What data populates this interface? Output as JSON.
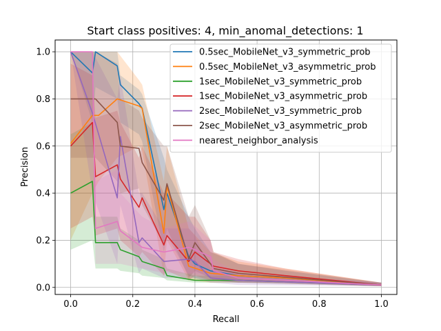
{
  "chart_data": {
    "type": "line",
    "title": "Start class positives: 4, min_anomal_detections: 1",
    "xlabel": "Recall",
    "ylabel": "Precision",
    "xlim": [
      -0.05,
      1.05
    ],
    "ylim": [
      -0.03,
      1.05
    ],
    "xticks": [
      "0.0",
      "0.2",
      "0.4",
      "0.6",
      "0.8",
      "1.0"
    ],
    "yticks": [
      "0.0",
      "0.2",
      "0.4",
      "0.6",
      "0.8",
      "1.0"
    ],
    "grid": true,
    "legend_position": "upper right",
    "series": [
      {
        "name": "0.5sec_MobileNet_v3_symmetric_prob",
        "color": "#1f77b4",
        "points": [
          [
            0.0,
            1.0
          ],
          [
            0.07,
            0.91
          ],
          [
            0.08,
            1.0
          ],
          [
            0.15,
            0.94
          ],
          [
            0.16,
            0.86
          ],
          [
            0.22,
            0.78
          ],
          [
            0.23,
            0.76
          ],
          [
            0.3,
            0.33
          ],
          [
            0.31,
            0.4
          ],
          [
            0.38,
            0.13
          ],
          [
            0.4,
            0.1
          ],
          [
            0.45,
            0.07
          ],
          [
            0.54,
            0.05
          ],
          [
            0.69,
            0.04
          ],
          [
            1.0,
            0.01
          ]
        ],
        "band_upper": [
          1.0,
          1.0,
          1.0,
          1.0,
          0.9,
          0.84,
          0.82,
          0.55,
          0.5,
          0.3,
          0.25,
          0.15,
          0.1,
          0.07,
          0.02
        ],
        "band_lower": [
          1.0,
          0.7,
          0.85,
          0.8,
          0.7,
          0.65,
          0.62,
          0.15,
          0.22,
          0.05,
          0.04,
          0.03,
          0.02,
          0.02,
          0.005
        ]
      },
      {
        "name": "0.5sec_MobileNet_v3_asymmetric_prob",
        "color": "#ff7f0e",
        "points": [
          [
            0.0,
            0.61
          ],
          [
            0.07,
            0.73
          ],
          [
            0.09,
            0.73
          ],
          [
            0.15,
            0.8
          ],
          [
            0.22,
            0.77
          ],
          [
            0.23,
            0.76
          ],
          [
            0.3,
            0.23
          ],
          [
            0.31,
            0.43
          ],
          [
            0.38,
            0.09
          ],
          [
            0.45,
            0.06
          ],
          [
            0.54,
            0.05
          ],
          [
            0.69,
            0.04
          ],
          [
            1.0,
            0.01
          ]
        ],
        "band_upper": [
          1.0,
          1.0,
          1.0,
          1.0,
          0.88,
          0.86,
          0.45,
          0.6,
          0.25,
          0.15,
          0.11,
          0.08,
          0.02
        ],
        "band_lower": [
          0.2,
          0.4,
          0.45,
          0.55,
          0.6,
          0.58,
          0.05,
          0.2,
          0.03,
          0.02,
          0.02,
          0.02,
          0.005
        ]
      },
      {
        "name": "1sec_MobileNet_v3_symmetric_prob",
        "color": "#2ca02c",
        "points": [
          [
            0.0,
            0.4
          ],
          [
            0.07,
            0.45
          ],
          [
            0.08,
            0.19
          ],
          [
            0.15,
            0.19
          ],
          [
            0.16,
            0.16
          ],
          [
            0.22,
            0.13
          ],
          [
            0.23,
            0.11
          ],
          [
            0.3,
            0.08
          ],
          [
            0.31,
            0.05
          ],
          [
            0.4,
            0.03
          ],
          [
            0.54,
            0.03
          ],
          [
            1.0,
            0.01
          ]
        ],
        "band_upper": [
          0.65,
          0.7,
          0.3,
          0.3,
          0.25,
          0.2,
          0.16,
          0.12,
          0.08,
          0.05,
          0.05,
          0.02
        ],
        "band_lower": [
          0.16,
          0.2,
          0.08,
          0.08,
          0.07,
          0.06,
          0.05,
          0.04,
          0.03,
          0.02,
          0.02,
          0.005
        ]
      },
      {
        "name": "1sec_MobileNet_v3_asymmetric_prob",
        "color": "#d62728",
        "points": [
          [
            0.0,
            0.6
          ],
          [
            0.07,
            0.7
          ],
          [
            0.08,
            0.47
          ],
          [
            0.15,
            0.52
          ],
          [
            0.16,
            0.46
          ],
          [
            0.22,
            0.34
          ],
          [
            0.23,
            0.38
          ],
          [
            0.3,
            0.18
          ],
          [
            0.31,
            0.22
          ],
          [
            0.38,
            0.11
          ],
          [
            0.4,
            0.15
          ],
          [
            0.45,
            0.1
          ],
          [
            0.46,
            0.09
          ],
          [
            0.54,
            0.07
          ],
          [
            0.69,
            0.05
          ],
          [
            1.0,
            0.01
          ]
        ],
        "band_upper": [
          0.95,
          0.9,
          0.72,
          0.75,
          0.7,
          0.55,
          0.6,
          0.4,
          0.4,
          0.3,
          0.3,
          0.2,
          0.15,
          0.12,
          0.08,
          0.02
        ],
        "band_lower": [
          0.25,
          0.3,
          0.22,
          0.25,
          0.2,
          0.13,
          0.15,
          0.05,
          0.07,
          0.03,
          0.05,
          0.03,
          0.03,
          0.03,
          0.02,
          0.005
        ]
      },
      {
        "name": "2sec_MobileNet_v3_symmetric_prob",
        "color": "#9467bd",
        "points": [
          [
            0.0,
            1.0
          ],
          [
            0.07,
            0.74
          ],
          [
            0.15,
            0.38
          ],
          [
            0.16,
            0.64
          ],
          [
            0.22,
            0.19
          ],
          [
            0.23,
            0.21
          ],
          [
            0.3,
            0.11
          ],
          [
            0.38,
            0.12
          ],
          [
            0.4,
            0.11
          ],
          [
            0.45,
            0.04
          ],
          [
            0.54,
            0.03
          ],
          [
            1.0,
            0.01
          ]
        ],
        "band_upper": [
          1.0,
          1.0,
          0.8,
          0.9,
          0.4,
          0.4,
          0.25,
          0.25,
          0.22,
          0.08,
          0.06,
          0.02
        ],
        "band_lower": [
          1.0,
          0.4,
          0.1,
          0.35,
          0.06,
          0.08,
          0.04,
          0.04,
          0.04,
          0.02,
          0.01,
          0.005
        ]
      },
      {
        "name": "2sec_MobileNet_v3_asymmetric_prob",
        "color": "#8c564b",
        "points": [
          [
            0.0,
            0.8
          ],
          [
            0.07,
            0.8
          ],
          [
            0.08,
            0.8
          ],
          [
            0.15,
            0.7
          ],
          [
            0.16,
            0.6
          ],
          [
            0.22,
            0.59
          ],
          [
            0.23,
            0.53
          ],
          [
            0.3,
            0.37
          ],
          [
            0.31,
            0.44
          ],
          [
            0.38,
            0.12
          ],
          [
            0.4,
            0.19
          ],
          [
            0.45,
            0.1
          ],
          [
            0.46,
            0.08
          ],
          [
            0.54,
            0.06
          ],
          [
            1.0,
            0.01
          ]
        ],
        "band_upper": [
          1.0,
          1.0,
          1.0,
          0.95,
          0.8,
          0.75,
          0.72,
          0.6,
          0.6,
          0.3,
          0.35,
          0.2,
          0.15,
          0.1,
          0.02
        ],
        "band_lower": [
          0.55,
          0.55,
          0.55,
          0.45,
          0.4,
          0.42,
          0.35,
          0.18,
          0.25,
          0.04,
          0.07,
          0.04,
          0.03,
          0.02,
          0.005
        ]
      },
      {
        "name": "nearest_neighbor_analysis",
        "color": "#e377c2",
        "points": [
          [
            0.0,
            1.0
          ],
          [
            0.07,
            1.0
          ],
          [
            0.08,
            0.25
          ],
          [
            0.15,
            0.28
          ],
          [
            0.16,
            0.24
          ],
          [
            0.23,
            0.17
          ],
          [
            0.3,
            0.15
          ],
          [
            0.38,
            0.17
          ],
          [
            0.4,
            0.16
          ],
          [
            0.45,
            0.13
          ],
          [
            0.46,
            0.07
          ],
          [
            0.54,
            0.04
          ],
          [
            1.0,
            0.01
          ]
        ],
        "band_upper": [
          1.0,
          1.0,
          0.45,
          0.5,
          0.4,
          0.3,
          0.25,
          0.28,
          0.26,
          0.2,
          0.12,
          0.06,
          0.02
        ],
        "band_lower": [
          1.0,
          1.0,
          0.1,
          0.1,
          0.1,
          0.08,
          0.06,
          0.06,
          0.06,
          0.05,
          0.03,
          0.02,
          0.005
        ]
      }
    ]
  }
}
